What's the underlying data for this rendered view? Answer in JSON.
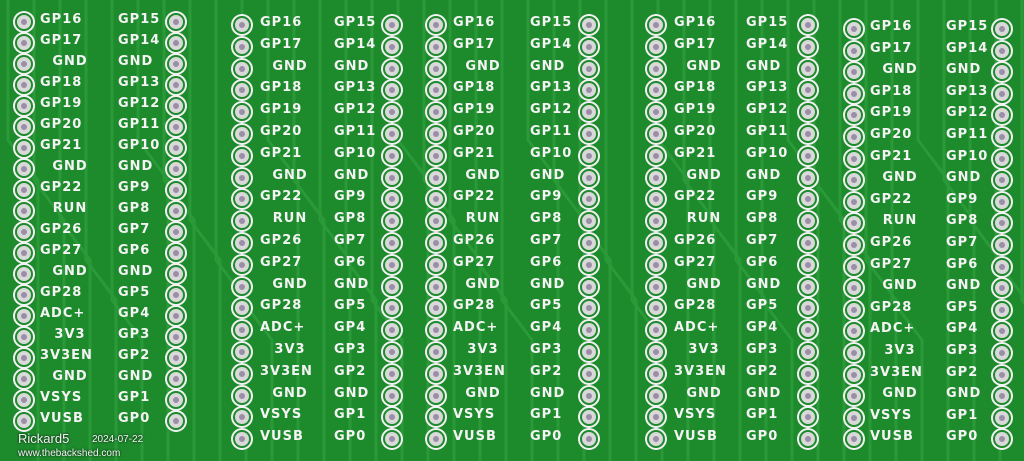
{
  "board_color": "#1d8a2c",
  "silkscreen_color": "#f4f4f4",
  "watermark": {
    "author": "Rickard5",
    "site": "www.thebackshed.com",
    "date": "2024-07-22"
  },
  "left_pins": [
    "GP16",
    "GP17",
    "GND",
    "GP18",
    "GP19",
    "GP20",
    "GP21",
    "GND",
    "GP22",
    "RUN",
    "GP26",
    "GP27",
    "GND",
    "GP28",
    "ADC+",
    "3V3",
    "3V3EN",
    "GND",
    "VSYS",
    "VUSB"
  ],
  "right_pins": [
    "GP15",
    "GP14",
    "GND",
    "GP13",
    "GP12",
    "GP11",
    "GP10",
    "GND",
    "GP9",
    "GP8",
    "GP7",
    "GP6",
    "GND",
    "GP5",
    "GP4",
    "GP3",
    "GP2",
    "GND",
    "GP1",
    "GP0"
  ],
  "module_count": 5
}
